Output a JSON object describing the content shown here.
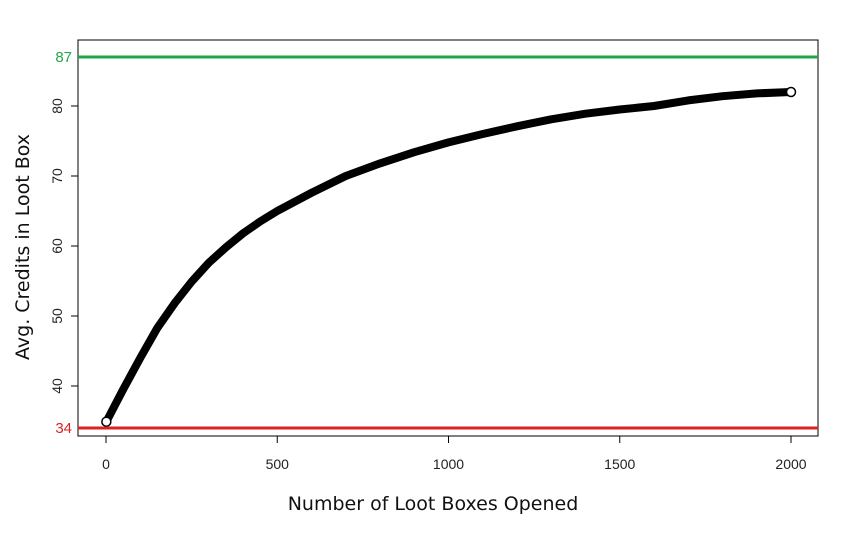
{
  "chart_data": {
    "type": "line",
    "xlabel": "Number of Loot Boxes Opened",
    "ylabel": "Avg. Credits in Loot Box",
    "xlim": [
      -80,
      2080
    ],
    "ylim": [
      33,
      88.5
    ],
    "x_ticks": [
      "0",
      "500",
      "1000",
      "1500",
      "2000"
    ],
    "y_ticks": [
      "40",
      "50",
      "60",
      "70",
      "80"
    ],
    "grid": false,
    "series": [
      {
        "color": "#000000",
        "points": [
          [
            1,
            34.9
          ],
          [
            50,
            39.5
          ],
          [
            100,
            44.0
          ],
          [
            150,
            48.3
          ],
          [
            200,
            51.8
          ],
          [
            250,
            54.9
          ],
          [
            300,
            57.6
          ],
          [
            350,
            59.8
          ],
          [
            400,
            61.8
          ],
          [
            450,
            63.5
          ],
          [
            500,
            65.0
          ],
          [
            600,
            67.6
          ],
          [
            700,
            70.0
          ],
          [
            800,
            71.8
          ],
          [
            900,
            73.4
          ],
          [
            1000,
            74.8
          ],
          [
            1100,
            76.0
          ],
          [
            1200,
            77.1
          ],
          [
            1300,
            78.1
          ],
          [
            1400,
            78.9
          ],
          [
            1500,
            79.5
          ],
          [
            1600,
            80.0
          ],
          [
            1700,
            80.8
          ],
          [
            1800,
            81.4
          ],
          [
            1900,
            81.8
          ],
          [
            2000,
            82.0
          ]
        ]
      }
    ],
    "reference_lines": [
      {
        "label": "87",
        "value": 87,
        "color": "#22a64a"
      },
      {
        "label": "34",
        "value": 34,
        "color": "#dd2222"
      }
    ]
  }
}
